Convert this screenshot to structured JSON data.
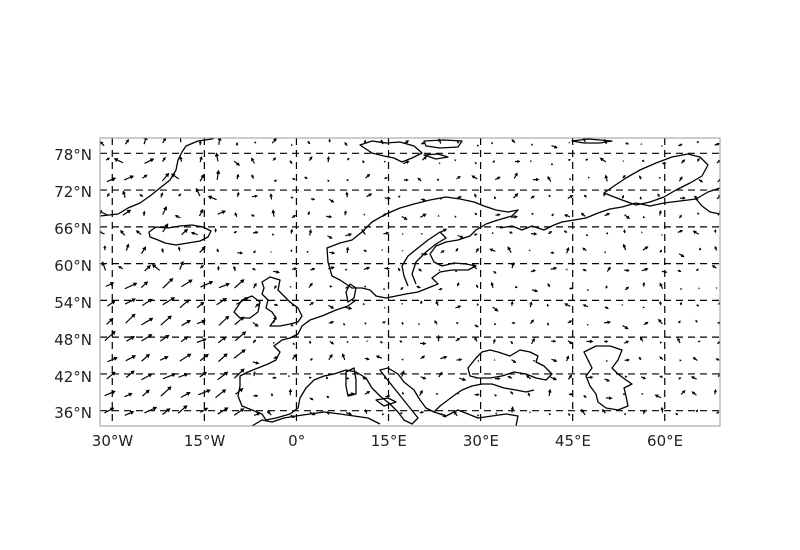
{
  "map": {
    "projection": "PlateCarree",
    "extent": {
      "lon": [
        -32,
        69
      ],
      "lat": [
        33.5,
        80.5
      ]
    },
    "gridlines": {
      "style": "dashed",
      "color": "#000000"
    },
    "lon_ticks": [
      {
        "value": -30,
        "label": "30°W"
      },
      {
        "value": -15,
        "label": "15°W"
      },
      {
        "value": 0,
        "label": "0°"
      },
      {
        "value": 15,
        "label": "15°E"
      },
      {
        "value": 30,
        "label": "30°E"
      },
      {
        "value": 45,
        "label": "45°E"
      },
      {
        "value": 60,
        "label": "60°E"
      }
    ],
    "lat_ticks": [
      {
        "value": 36,
        "label": "36°N"
      },
      {
        "value": 42,
        "label": "42°N"
      },
      {
        "value": 48,
        "label": "48°N"
      },
      {
        "value": 54,
        "label": "54°N"
      },
      {
        "value": 60,
        "label": "60°N"
      },
      {
        "value": 66,
        "label": "66°N"
      },
      {
        "value": 72,
        "label": "72°N"
      },
      {
        "value": 78,
        "label": "78°N"
      }
    ],
    "features": [
      "coastlines",
      "wind-vector-quiver"
    ],
    "quiver_color": "#000000"
  }
}
